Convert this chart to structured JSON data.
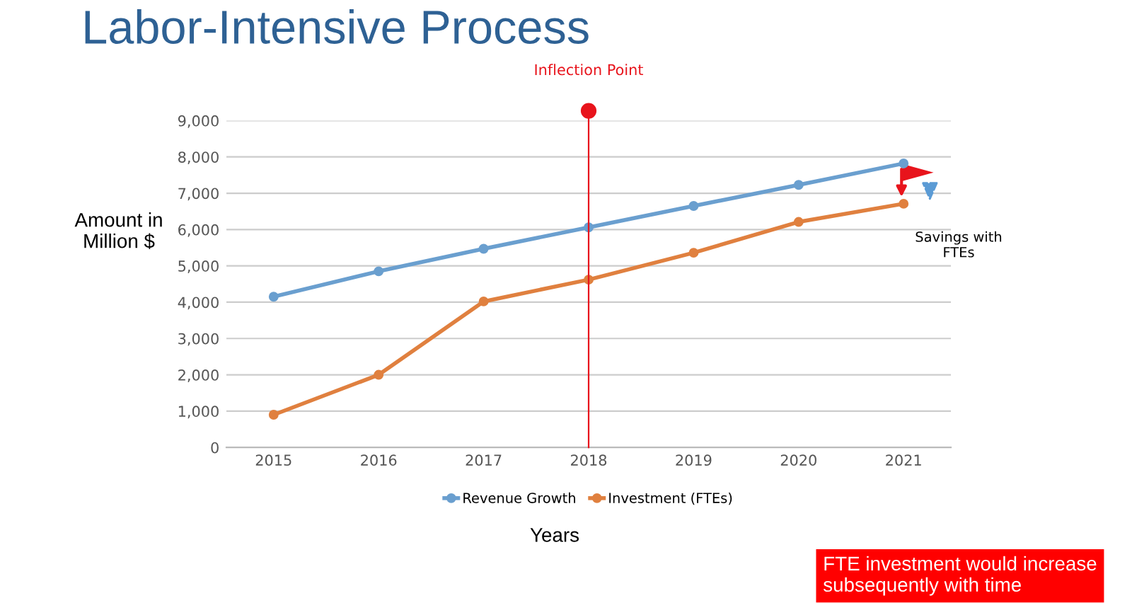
{
  "chart_data": {
    "type": "line",
    "title": "Labor-Intensive Process",
    "xlabel": "Years",
    "ylabel": "Amount in\nMillion $",
    "categories": [
      "2015",
      "2016",
      "2017",
      "2018",
      "2019",
      "2020",
      "2021"
    ],
    "series": [
      {
        "name": "Revenue Growth",
        "color": "#6a9fcf",
        "values": [
          4150,
          4850,
          5470,
          6060,
          6650,
          7230,
          7820
        ]
      },
      {
        "name": "Investment (FTEs)",
        "color": "#e0803f",
        "values": [
          900,
          2000,
          4020,
          4620,
          5360,
          6210,
          6710
        ]
      }
    ],
    "ylim": [
      0,
      9000
    ],
    "yticks": [
      {
        "value": 0,
        "label": "0"
      },
      {
        "value": 1000,
        "label": "1,000"
      },
      {
        "value": 2000,
        "label": "2,000"
      },
      {
        "value": 3000,
        "label": "3,000"
      },
      {
        "value": 4000,
        "label": "4,000"
      },
      {
        "value": 5000,
        "label": "5,000"
      },
      {
        "value": 6000,
        "label": "6,000"
      },
      {
        "value": 7000,
        "label": "7,000"
      },
      {
        "value": 8000,
        "label": "8,000"
      },
      {
        "value": 9000,
        "label": "9,000"
      }
    ],
    "ref_lines": [
      {
        "axis": "x",
        "value": "2018",
        "label": "Inflection Point",
        "color": "#e8141c"
      }
    ],
    "annotations": [
      {
        "text": "Savings with\nFTEs",
        "x": "2021",
        "y": 6710
      },
      "FTE investment would increase subsequently with time"
    ],
    "grid": "y",
    "legend": "bottom",
    "marker": "circle",
    "line_style": "solid"
  }
}
